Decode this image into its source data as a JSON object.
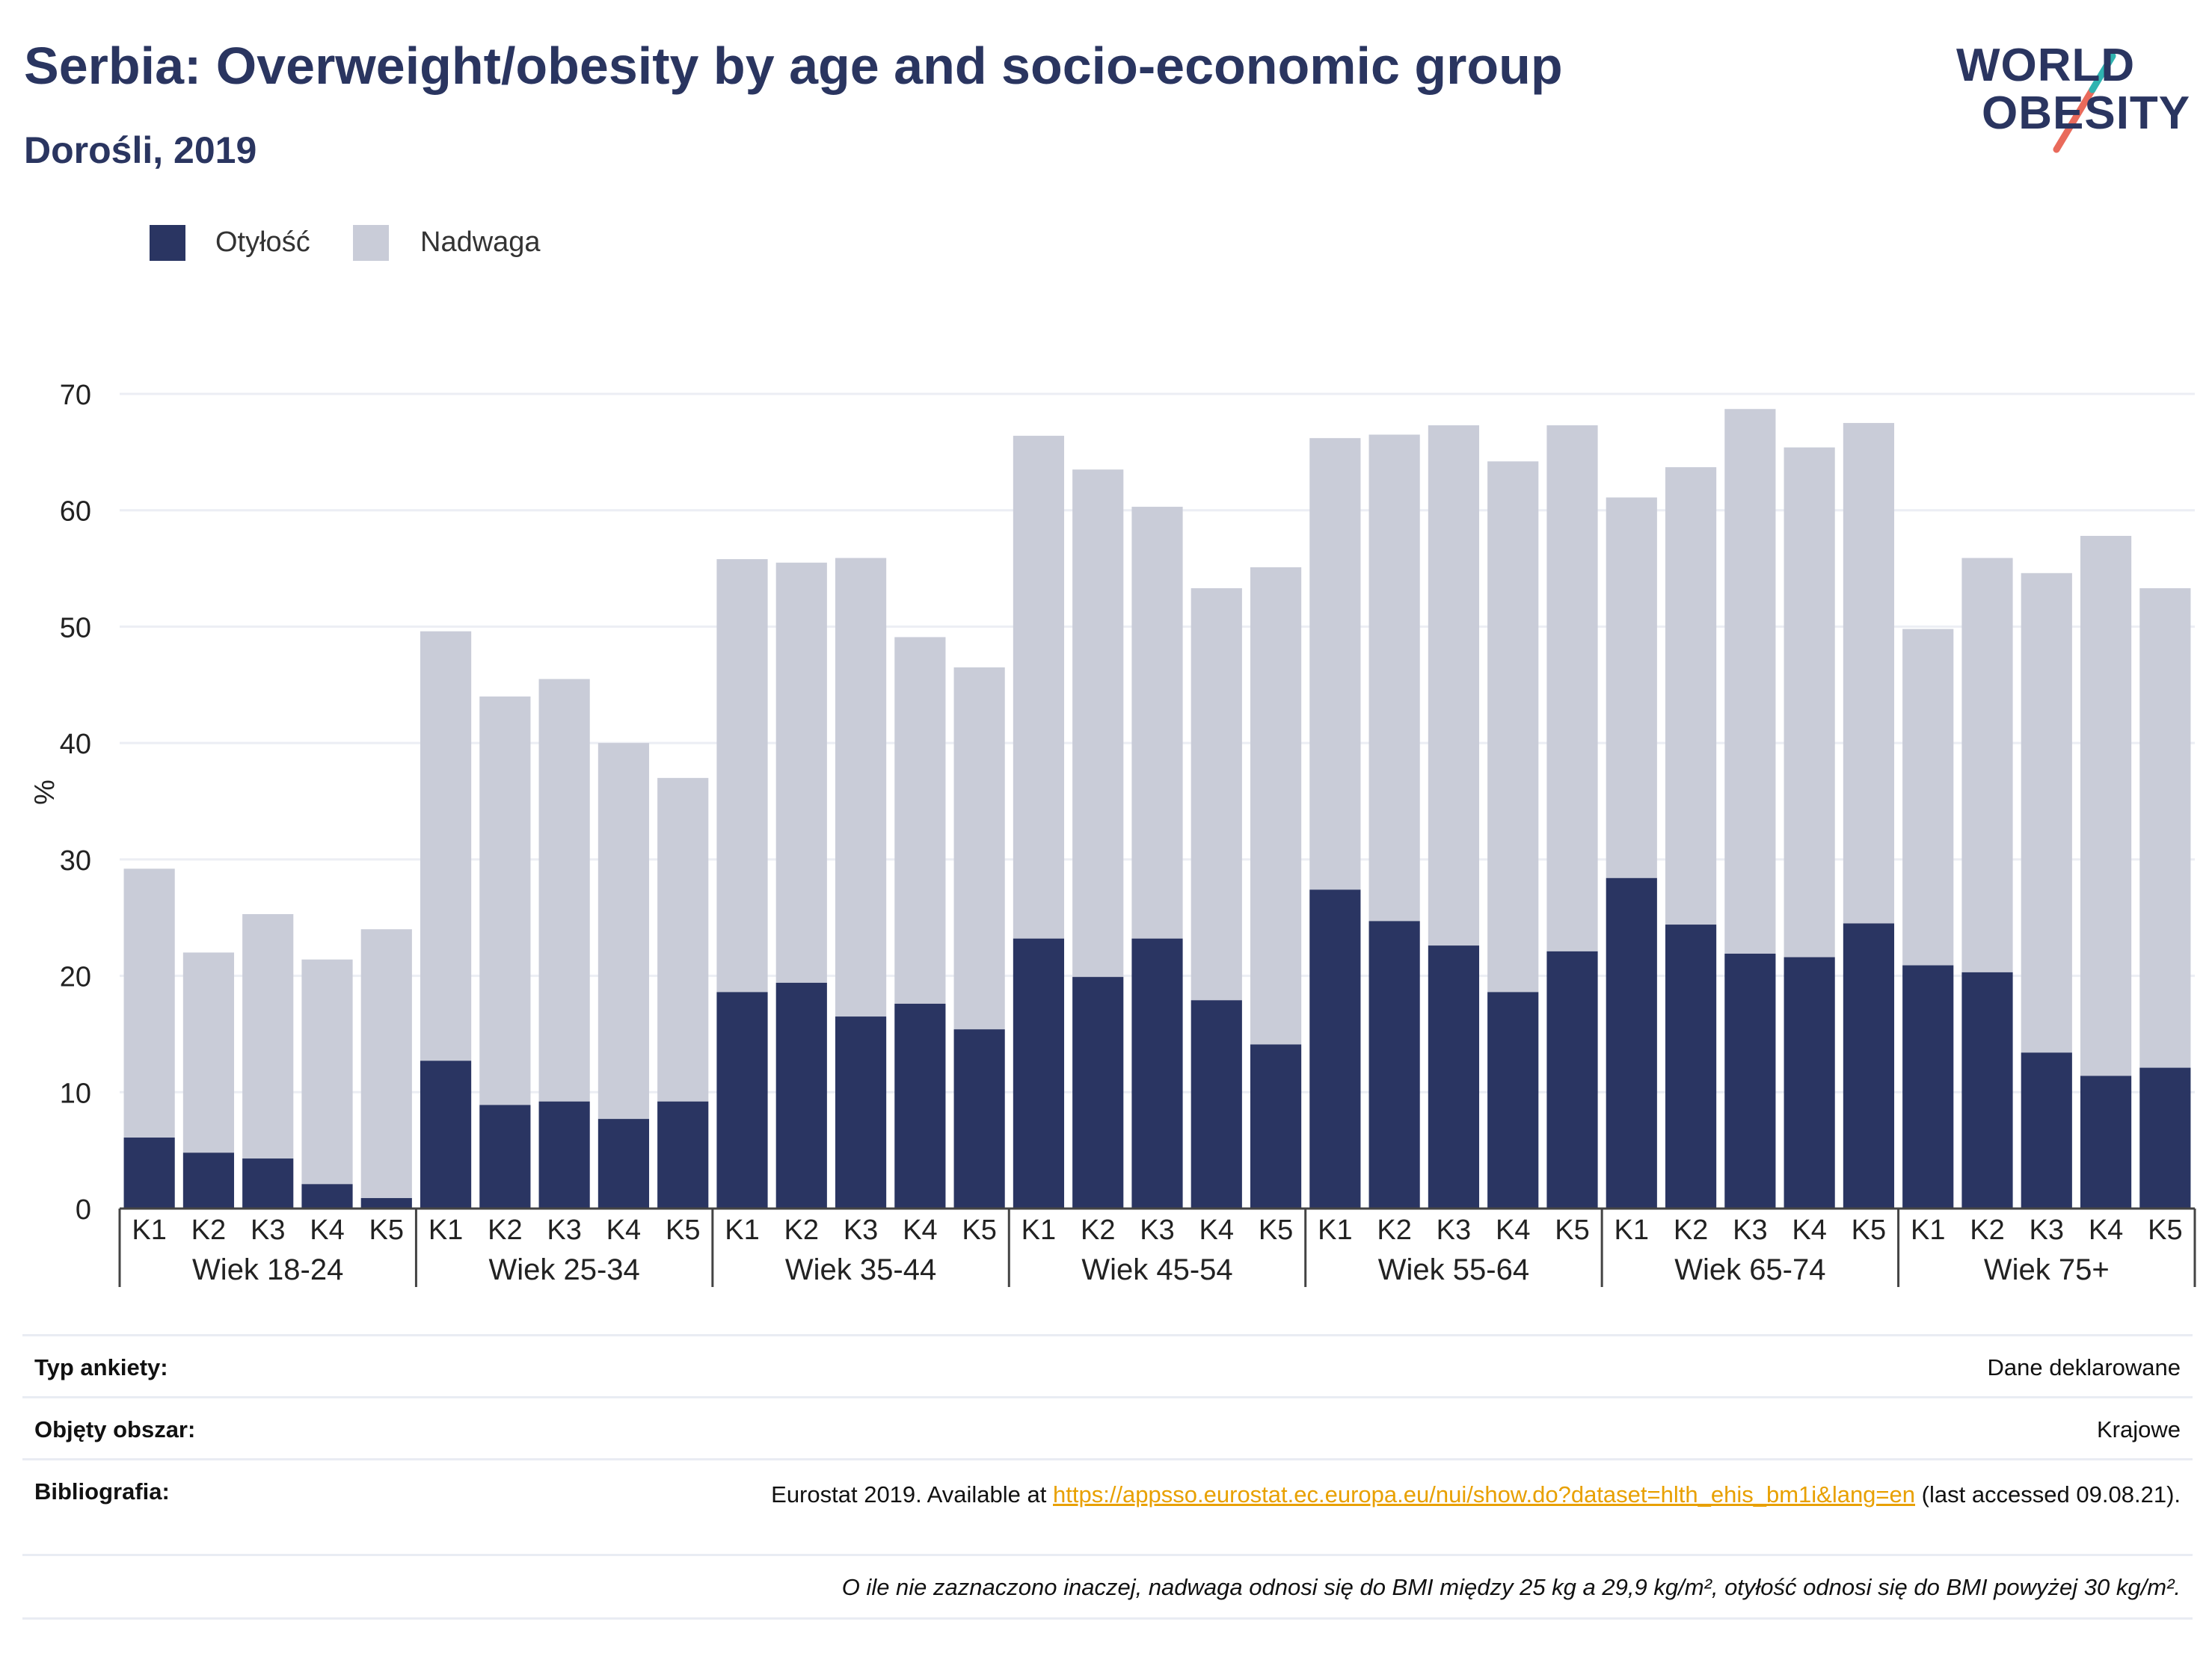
{
  "header": {
    "title": "Serbia: Overweight/obesity by age and socio-economic group",
    "subtitle": "Dorośli, 2019"
  },
  "logo": {
    "line1": "WORLD",
    "line2": "OBESITY"
  },
  "legend": {
    "obesity": "Otyłość",
    "overweight": "Nadwaga"
  },
  "colors": {
    "obesity": "#2a3562",
    "overweight": "#c9ccd8",
    "grid": "#eceef4",
    "link": "#e8a000"
  },
  "chart_data": {
    "type": "bar",
    "stacked": true,
    "ylabel": "%",
    "ylim": [
      0,
      70
    ],
    "yticks": [
      0,
      10,
      20,
      30,
      40,
      50,
      60,
      70
    ],
    "grid": true,
    "legend_position": "top-left",
    "subcategories": [
      "K1",
      "K2",
      "K3",
      "K4",
      "K5"
    ],
    "groups": [
      {
        "label": "Wiek 18-24",
        "obesity": [
          6.1,
          4.8,
          4.3,
          2.1,
          0.9
        ],
        "total": [
          29.2,
          22.0,
          25.3,
          21.4,
          24.0
        ]
      },
      {
        "label": "Wiek 25-34",
        "obesity": [
          12.7,
          8.9,
          9.2,
          7.7,
          9.2
        ],
        "total": [
          49.6,
          44.0,
          45.5,
          40.0,
          37.0
        ]
      },
      {
        "label": "Wiek 35-44",
        "obesity": [
          18.6,
          19.4,
          16.5,
          17.6,
          15.4
        ],
        "total": [
          55.8,
          55.5,
          55.9,
          49.1,
          46.5
        ]
      },
      {
        "label": "Wiek 45-54",
        "obesity": [
          23.2,
          19.9,
          23.2,
          17.9,
          14.1
        ],
        "total": [
          66.4,
          63.5,
          60.3,
          53.3,
          55.1
        ]
      },
      {
        "label": "Wiek 55-64",
        "obesity": [
          27.4,
          24.7,
          22.6,
          18.6,
          22.1
        ],
        "total": [
          66.2,
          66.5,
          67.3,
          64.2,
          67.3
        ]
      },
      {
        "label": "Wiek 65-74",
        "obesity": [
          28.4,
          24.4,
          21.9,
          21.6,
          24.5
        ],
        "total": [
          61.1,
          63.7,
          68.7,
          65.4,
          67.5
        ]
      },
      {
        "label": "Wiek 75+",
        "obesity": [
          20.9,
          20.3,
          13.4,
          11.4,
          12.1
        ],
        "total": [
          49.8,
          55.9,
          54.6,
          57.8,
          53.3
        ]
      }
    ]
  },
  "info": {
    "survey_key": "Typ ankiety:",
    "survey_val": "Dane deklarowane",
    "area_key": "Objęty obszar:",
    "area_val": "Krajowe",
    "bib_key": "Bibliografia:",
    "bib_prefix": "Eurostat 2019. Available at",
    "bib_link": "https://appsso.eurostat.ec.europa.eu/nui/show.do?dataset=hlth_ehis_bm1i&lang=en",
    "bib_suffix": "(last accessed 09.08.21).",
    "note": "O ile nie zaznaczono inaczej, nadwaga odnosi się do BMI między 25 kg a 29,9 kg/m², otyłość odnosi się do BMI powyżej 30 kg/m²."
  }
}
